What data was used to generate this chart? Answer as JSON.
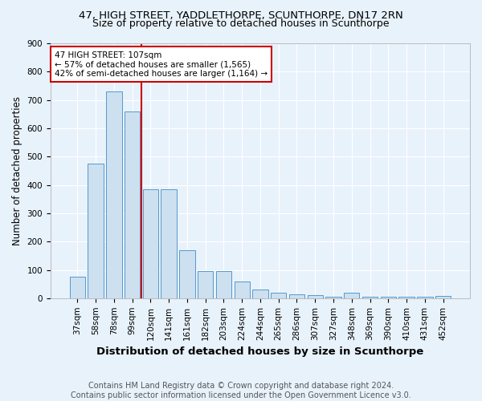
{
  "title": "47, HIGH STREET, YADDLETHORPE, SCUNTHORPE, DN17 2RN",
  "subtitle": "Size of property relative to detached houses in Scunthorpe",
  "xlabel": "Distribution of detached houses by size in Scunthorpe",
  "ylabel": "Number of detached properties",
  "footnote1": "Contains HM Land Registry data © Crown copyright and database right 2024.",
  "footnote2": "Contains public sector information licensed under the Open Government Licence v3.0.",
  "categories": [
    "37sqm",
    "58sqm",
    "78sqm",
    "99sqm",
    "120sqm",
    "141sqm",
    "161sqm",
    "182sqm",
    "203sqm",
    "224sqm",
    "244sqm",
    "265sqm",
    "286sqm",
    "307sqm",
    "327sqm",
    "348sqm",
    "369sqm",
    "390sqm",
    "410sqm",
    "431sqm",
    "452sqm"
  ],
  "values": [
    75,
    475,
    730,
    660,
    385,
    385,
    170,
    97,
    97,
    60,
    30,
    20,
    15,
    10,
    5,
    18,
    5,
    5,
    5,
    5,
    8
  ],
  "bar_color": "#cce0f0",
  "bar_edge_color": "#5599cc",
  "vline_color": "#cc0000",
  "annotation_text": "47 HIGH STREET: 107sqm\n← 57% of detached houses are smaller (1,565)\n42% of semi-detached houses are larger (1,164) →",
  "annotation_box_color": "#ffffff",
  "annotation_box_edge_color": "#cc0000",
  "ylim": [
    0,
    900
  ],
  "yticks": [
    0,
    100,
    200,
    300,
    400,
    500,
    600,
    700,
    800,
    900
  ],
  "background_color": "#e8f2fb",
  "title_fontsize": 9.5,
  "subtitle_fontsize": 9,
  "xlabel_fontsize": 9.5,
  "ylabel_fontsize": 8.5,
  "tick_fontsize": 7.5,
  "annotation_fontsize": 7.5,
  "footnote_fontsize": 7
}
